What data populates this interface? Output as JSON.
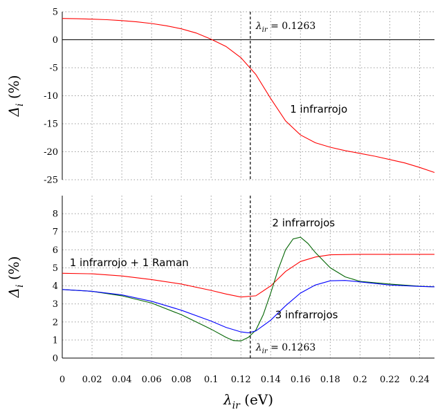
{
  "chart_data": [
    {
      "type": "line",
      "ylabel": "Δ_i (%)",
      "xlabel": "",
      "xlim": [
        0,
        0.25
      ],
      "ylim": [
        -25,
        5
      ],
      "grid": true,
      "xticks": [
        "0",
        "0.02",
        "0.04",
        "0.06",
        "0.08",
        "0.1",
        "0.12",
        "0.14",
        "0.16",
        "0.18",
        "0.2",
        "0.22",
        "0.24"
      ],
      "yticks": [
        "5",
        "0",
        "-5",
        "-10",
        "-15",
        "-20",
        "-25"
      ],
      "vline": {
        "x": 0.1263,
        "label": "λ_ir = 0.1263"
      },
      "annotations": [
        {
          "text": "1 infrarrojo",
          "x": 0.153,
          "y": -13
        }
      ],
      "series": [
        {
          "name": "1 infrarrojo",
          "color": "#ff0000",
          "x": [
            0,
            0.01,
            0.02,
            0.03,
            0.04,
            0.05,
            0.06,
            0.07,
            0.08,
            0.09,
            0.1,
            0.11,
            0.12,
            0.13,
            0.14,
            0.15,
            0.16,
            0.17,
            0.18,
            0.19,
            0.2,
            0.21,
            0.22,
            0.23,
            0.24,
            0.25
          ],
          "y": [
            3.8,
            3.75,
            3.68,
            3.58,
            3.42,
            3.2,
            2.9,
            2.5,
            1.95,
            1.2,
            0.1,
            -1.2,
            -3.2,
            -6.2,
            -10.5,
            -14.5,
            -17.0,
            -18.4,
            -19.2,
            -19.8,
            -20.3,
            -20.8,
            -21.4,
            -22.0,
            -22.8,
            -23.7
          ]
        }
      ]
    },
    {
      "type": "line",
      "ylabel": "Δ_i (%)",
      "xlabel": "λ_ir (eV)",
      "xlim": [
        0,
        0.25
      ],
      "ylim": [
        0,
        9
      ],
      "grid": true,
      "xticks": [
        "0",
        "0.02",
        "0.04",
        "0.06",
        "0.08",
        "0.1",
        "0.12",
        "0.14",
        "0.16",
        "0.18",
        "0.2",
        "0.22",
        "0.24"
      ],
      "yticks": [
        "0",
        "1",
        "2",
        "3",
        "4",
        "5",
        "6",
        "7",
        "8"
      ],
      "vline": {
        "x": 0.1263,
        "label": "λ_ir = 0.1263"
      },
      "annotations": [
        {
          "text": "2 infrarrojos",
          "x": 0.141,
          "y": 7.3
        },
        {
          "text": "1 infrarrojo + 1 Raman",
          "x": 0.005,
          "y": 5.1
        },
        {
          "text": "3 infrarrojos",
          "x": 0.143,
          "y": 2.2
        }
      ],
      "series": [
        {
          "name": "1 infrarrojo + 1 Raman",
          "color": "#ff0000",
          "x": [
            0,
            0.02,
            0.04,
            0.06,
            0.08,
            0.1,
            0.11,
            0.12,
            0.13,
            0.14,
            0.15,
            0.16,
            0.17,
            0.18,
            0.2,
            0.22,
            0.24,
            0.25
          ],
          "y": [
            4.7,
            4.67,
            4.55,
            4.35,
            4.1,
            3.75,
            3.55,
            3.38,
            3.45,
            4.0,
            4.8,
            5.35,
            5.6,
            5.72,
            5.75,
            5.75,
            5.75,
            5.75
          ]
        },
        {
          "name": "2 infrarrojos",
          "color": "#006400",
          "x": [
            0,
            0.02,
            0.04,
            0.06,
            0.08,
            0.1,
            0.11,
            0.115,
            0.12,
            0.125,
            0.13,
            0.135,
            0.14,
            0.145,
            0.15,
            0.155,
            0.16,
            0.165,
            0.17,
            0.18,
            0.19,
            0.2,
            0.22,
            0.24,
            0.25
          ],
          "y": [
            3.8,
            3.7,
            3.45,
            3.05,
            2.4,
            1.6,
            1.15,
            0.97,
            0.95,
            1.15,
            1.55,
            2.4,
            3.6,
            4.9,
            6.0,
            6.6,
            6.7,
            6.35,
            5.85,
            5.0,
            4.5,
            4.25,
            4.1,
            3.98,
            3.95
          ]
        },
        {
          "name": "3 infrarrojos",
          "color": "#0000ff",
          "x": [
            0,
            0.02,
            0.04,
            0.06,
            0.08,
            0.1,
            0.11,
            0.12,
            0.125,
            0.13,
            0.14,
            0.15,
            0.16,
            0.17,
            0.18,
            0.19,
            0.2,
            0.22,
            0.24,
            0.25
          ],
          "y": [
            3.8,
            3.7,
            3.5,
            3.15,
            2.65,
            2.05,
            1.7,
            1.45,
            1.4,
            1.5,
            2.1,
            2.9,
            3.6,
            4.05,
            4.28,
            4.3,
            4.22,
            4.05,
            3.97,
            3.95
          ]
        }
      ]
    }
  ]
}
